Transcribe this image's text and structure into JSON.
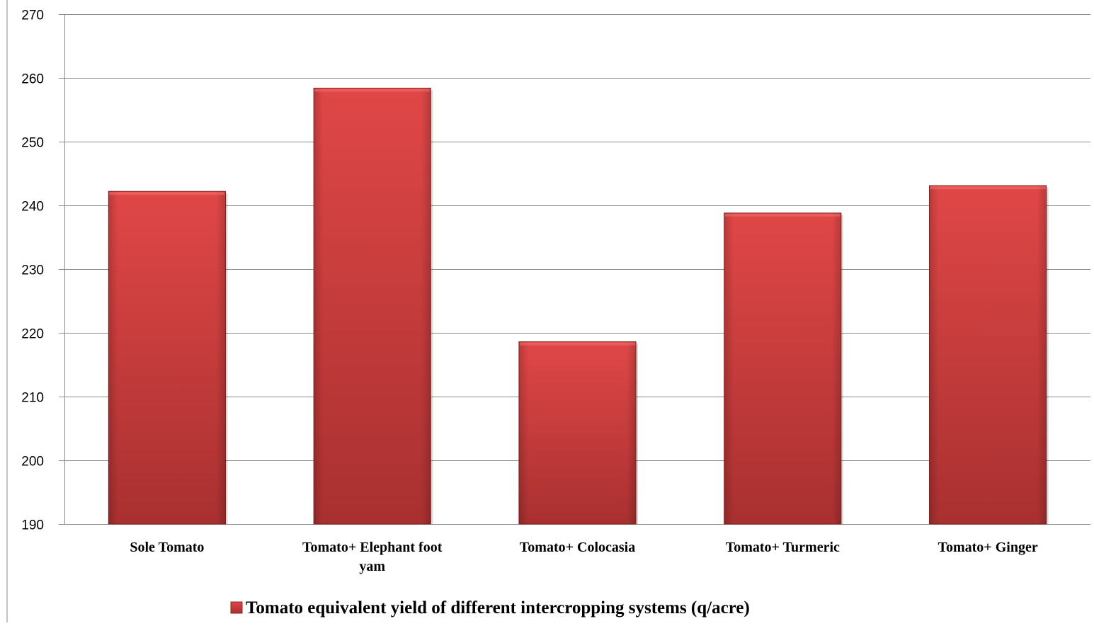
{
  "chart_data": {
    "type": "bar",
    "categories": [
      [
        "Sole Tomato"
      ],
      [
        "Tomato+ Elephant foot",
        "yam"
      ],
      [
        "Tomato+ Colocasia"
      ],
      [
        "Tomato+ Turmeric"
      ],
      [
        "Tomato+ Ginger"
      ]
    ],
    "series": [
      {
        "name": "Tomato equivalent yield of different intercropping systems (q/acre)",
        "values": [
          242.2,
          258.4,
          218.6,
          238.8,
          243.1
        ],
        "color": "#c0393b"
      }
    ],
    "ylim": [
      190,
      270
    ],
    "yticks": [
      "190",
      "200",
      "210",
      "220",
      "230",
      "240",
      "250",
      "260",
      "270"
    ],
    "grid": true,
    "legend_position": "bottom"
  }
}
